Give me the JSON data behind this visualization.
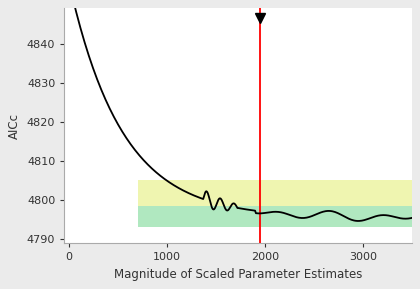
{
  "title": "",
  "xlabel": "Magnitude of Scaled Parameter Estimates",
  "ylabel": "AICc",
  "xlim": [
    -50,
    3500
  ],
  "ylim": [
    4789,
    4849
  ],
  "yticks": [
    4790,
    4800,
    4810,
    4820,
    4830,
    4840
  ],
  "xticks": [
    0,
    1000,
    2000,
    3000
  ],
  "red_line_x": 1950,
  "triangle_x": 1950,
  "triangle_y": 4846.5,
  "yellow_band_xmin": 700,
  "yellow_band_ymin": 4797.5,
  "yellow_band_ymax": 4805.0,
  "green_band_xmin": 700,
  "green_band_ymin": 4793.0,
  "green_band_ymax": 4798.5,
  "yellow_color": "#eff5b0",
  "green_color": "#b0e8c0",
  "red_color": "#ff0000",
  "line_color": "#000000",
  "bg_color": "#ebebeb",
  "plot_bg_color": "#ffffff"
}
